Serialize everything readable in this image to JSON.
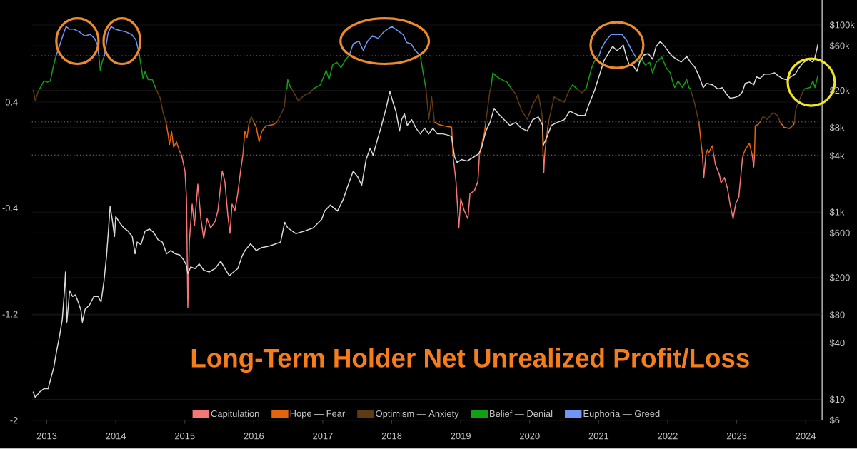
{
  "chart_data": {
    "type": "line",
    "title": "Long-Term Holder Net Unrealized Profit/Loss",
    "xlim": [
      "2012-10-14",
      "2024-03-28"
    ],
    "xticks": [
      "2013",
      "2014",
      "2015",
      "2016",
      "2017",
      "2018",
      "2019",
      "2020",
      "2021",
      "2022",
      "2023",
      "2024"
    ],
    "ylim": [
      -2,
      1.17
    ],
    "yticks": [
      0.4,
      -0.4,
      -1.2,
      -2
    ],
    "y2lim": [
      6,
      185000
    ],
    "y2ticks": [
      {
        "value": 6,
        "label": "$6"
      },
      {
        "value": 10,
        "label": "$10"
      },
      {
        "value": 40,
        "label": "$40"
      },
      {
        "value": 80,
        "label": "$80"
      },
      {
        "value": 200,
        "label": "$200"
      },
      {
        "value": 600,
        "label": "$600"
      },
      {
        "value": 1000,
        "label": "$1k"
      },
      {
        "value": 4000,
        "label": "$4k"
      },
      {
        "value": 8000,
        "label": "$8k"
      },
      {
        "value": 20000,
        "label": "$20k"
      },
      {
        "value": 60000,
        "label": "$60k"
      },
      {
        "value": 100000,
        "label": "$100k"
      }
    ],
    "log": "y2",
    "grid": "y",
    "legend": "bottom",
    "ref_lines": [
      {
        "axis": "y",
        "value": 0.75,
        "color": "#8f8f8f",
        "line_style": "dotted"
      },
      {
        "axis": "y",
        "value": 0.5,
        "color": "#8e8e8e",
        "line_style": "dotted"
      },
      {
        "axis": "y",
        "value": 0.25,
        "color": "#8d8d8d",
        "line_style": "dotted"
      },
      {
        "axis": "y",
        "value": 0,
        "color": "#8c8c8c",
        "line_style": "dotted"
      }
    ],
    "series": [
      {
        "name": "Capitulation",
        "color": "#f77777",
        "x": [
          "2014-12-15",
          "2015-01-02",
          "2015-01-10",
          "2015-01-17",
          "2015-01-25",
          "2015-02-09",
          "2015-02-21",
          "2015-03-11",
          "2015-03-27",
          "2015-04-11",
          "2015-04-29",
          "2015-05-18",
          "2015-06-10",
          "2015-06-25",
          "2015-07-18",
          "2015-08-01",
          "2015-08-17",
          "2015-08-28",
          "2015-09-08",
          "2015-09-23",
          "2015-10-08",
          "2015-10-23",
          "2015-11-04",
          "2015-11-15",
          "2018-11-21",
          "2018-12-07",
          "2018-12-22",
          "2019-01-01",
          "2019-01-20",
          "2019-02-08",
          "2019-02-19",
          "2019-03-14",
          "2019-04-02",
          "2019-04-10",
          "2019-04-21",
          "2020-03-12",
          "2020-03-16",
          "2020-03-20",
          "2020-04-01",
          "2022-07-04",
          "2022-07-11",
          "2022-07-22",
          "2022-08-10",
          "2022-09-02",
          "2022-09-10",
          "2022-10-02",
          "2022-10-10",
          "2022-10-28",
          "2022-11-13",
          "2022-11-28",
          "2022-12-13",
          "2022-12-28",
          "2023-01-12",
          "2023-01-31",
          "2023-02-04",
          "2023-02-15",
          "2023-03-24",
          "2023-04-01",
          "2023-04-05"
        ],
        "values": [
          0,
          -0.12,
          -0.33,
          -1.15,
          -0.65,
          -0.37,
          -0.53,
          -0.22,
          -0.48,
          -0.63,
          -0.48,
          -0.55,
          -0.5,
          -0.42,
          -0.12,
          -0.2,
          -0.46,
          -0.59,
          -0.37,
          -0.42,
          -0.29,
          -0.12,
          0,
          null,
          0,
          -0.2,
          -0.55,
          -0.33,
          -0.42,
          -0.48,
          -0.29,
          -0.27,
          -0.2,
          0,
          null,
          0,
          -0.13,
          0,
          null,
          0,
          -0.17,
          0,
          null,
          0,
          -0.07,
          -0.15,
          -0.21,
          -0.17,
          -0.25,
          -0.38,
          -0.48,
          -0.36,
          -0.32,
          -0.03,
          0,
          null,
          0,
          -0.09,
          0
        ]
      },
      {
        "name": "Hope — Fear",
        "color": "#e3640f",
        "x": [
          "2014-09-23",
          "2014-10-04",
          "2014-10-12",
          "2014-10-23",
          "2014-11-03",
          "2014-11-18",
          "2014-12-04",
          "2014-12-15",
          "2015-01-02",
          "2015-11-04",
          "2015-11-15",
          "2015-11-26",
          "2015-12-08",
          "2015-12-19",
          "2015-12-31",
          "2016-01-14",
          "2016-01-29",
          "2016-02-13",
          "2016-03-06",
          "2016-04-14",
          "2016-05-03",
          "2016-05-22",
          "2018-08-15",
          "2018-09-07",
          "2018-10-07",
          "2018-11-14",
          "2018-11-21",
          "2018-12-07",
          "2019-04-10",
          "2019-04-21",
          "2019-05-06",
          "2019-05-14",
          "2019-06-05",
          "2020-03-09",
          "2020-03-12",
          "2020-03-16",
          "2020-03-20",
          "2020-04-01",
          "2020-04-10",
          "2020-05-10",
          "2022-06-15",
          "2022-06-26",
          "2022-07-04",
          "2022-07-11",
          "2022-07-22",
          "2022-07-30",
          "2022-08-08",
          "2022-08-17",
          "2022-08-25",
          "2022-09-02",
          "2022-09-10",
          "2023-02-04",
          "2023-02-15",
          "2023-03-09",
          "2023-03-24",
          "2023-04-01",
          "2023-04-05",
          "2023-04-09",
          "2023-04-24",
          "2023-05-05",
          "2023-05-20",
          "2023-08-19",
          "2023-09-07",
          "2023-10-07",
          "2023-10-30",
          "2023-11-02"
        ],
        "values": [
          0.25,
          0.16,
          0.08,
          0.18,
          0.06,
          0.1,
          0.03,
          0,
          null,
          0,
          0.18,
          0.13,
          0.25,
          null,
          0.25,
          0.21,
          0.1,
          0.18,
          0.22,
          0.23,
          0.25,
          null,
          0.25,
          0.23,
          0.22,
          0.21,
          0,
          null,
          0,
          0.08,
          0.16,
          0.25,
          null,
          0.25,
          0,
          null,
          0,
          0.15,
          0.25,
          null,
          0.25,
          0.1,
          0,
          null,
          0,
          0.04,
          0.02,
          0.05,
          0.07,
          0,
          null,
          0,
          0.04,
          0.09,
          0,
          null,
          0,
          0.22,
          0.23,
          0.25,
          null,
          0.25,
          0.21,
          0.2,
          0.23,
          0.25
        ]
      },
      {
        "name": "Optimism — Anxiety",
        "color": "#5e3b12",
        "x": [
          "2012-10-21",
          "2012-11-01",
          "2012-11-16",
          "2012-11-24",
          "2012-12-17",
          "2014-08-01",
          "2014-08-24",
          "2014-09-08",
          "2014-09-23",
          "2014-10-04",
          "2015-12-08",
          "2015-12-19",
          "2015-12-31",
          "2016-01-14",
          "2016-05-03",
          "2016-05-22",
          "2016-06-10",
          "2016-06-21",
          "2016-06-25",
          "2016-06-29",
          "2016-07-21",
          "2016-08-24",
          "2016-09-23",
          "2016-10-24",
          "2016-11-11",
          "2016-12-19",
          "2018-07-01",
          "2018-07-16",
          "2018-07-31",
          "2018-08-15",
          "2018-09-07",
          "2019-05-14",
          "2019-06-05",
          "2019-06-09",
          "2019-06-20",
          "2019-09-27",
          "2019-10-19",
          "2019-11-18",
          "2019-12-19",
          "2020-01-17",
          "2020-02-16",
          "2020-03-06",
          "2020-03-09",
          "2020-03-12",
          "2020-04-10",
          "2020-05-10",
          "2020-06-01",
          "2020-07-02",
          "2020-08-01",
          "2020-08-16",
          "2020-09-07",
          "2020-10-04",
          "2020-10-26",
          "2020-11-25",
          "2022-05-01",
          "2022-05-24",
          "2022-06-08",
          "2022-06-15",
          "2022-06-26",
          "2023-05-05",
          "2023-05-20",
          "2023-06-12",
          "2023-07-12",
          "2023-08-04",
          "2023-08-19",
          "2023-09-07",
          "2023-11-02",
          "2023-11-10",
          "2023-12-03",
          "2023-12-18",
          "2023-12-26"
        ],
        "values": [
          0.49,
          0.41,
          0.48,
          0.5,
          null,
          0.5,
          0.43,
          0.32,
          0.25,
          null,
          0.25,
          0.29,
          0.25,
          null,
          0.25,
          0.3,
          0.36,
          0.49,
          0.5,
          null,
          0.5,
          0.41,
          0.45,
          0.47,
          0.5,
          null,
          0.5,
          0.27,
          0.44,
          0.25,
          null,
          0.25,
          0.49,
          0.5,
          null,
          0.5,
          0.46,
          0.34,
          0.27,
          0.38,
          0.46,
          0.31,
          0.25,
          null,
          0.25,
          0.44,
          0.42,
          0.4,
          0.5,
          null,
          0.5,
          0.47,
          0.5,
          null,
          0.5,
          0.39,
          0.29,
          0.25,
          null,
          0.25,
          0.29,
          0.27,
          0.32,
          0.3,
          0.25,
          null,
          0.25,
          0.35,
          0.43,
          0.48,
          0.5
        ]
      },
      {
        "name": "Belief — Denial",
        "color": "#10a010",
        "x": [
          "2012-11-24",
          "2012-12-17",
          "2013-01-04",
          "2013-01-20",
          "2013-02-03",
          "2013-02-19",
          "2013-03-06",
          "2013-10-03",
          "2013-10-11",
          "2013-10-22",
          "2013-11-02",
          "2013-11-21",
          "2014-05-06",
          "2014-05-14",
          "2014-05-25",
          "2014-06-05",
          "2014-06-21",
          "2014-07-13",
          "2014-08-01",
          "2014-08-24",
          "2016-06-25",
          "2016-06-29",
          "2016-07-14",
          "2016-07-21",
          "2016-08-24",
          "2016-11-11",
          "2016-12-19",
          "2017-01-19",
          "2017-02-03",
          "2017-02-22",
          "2017-03-16",
          "2017-04-08",
          "2017-05-01",
          "2017-05-20",
          "2017-06-11",
          "2018-06-01",
          "2018-06-16",
          "2018-07-01",
          "2018-07-16",
          "2019-06-09",
          "2019-06-20",
          "2019-07-13",
          "2019-08-05",
          "2019-09-04",
          "2019-09-27",
          "2019-10-19",
          "2020-08-01",
          "2020-08-16",
          "2020-09-07",
          "2020-10-04",
          "2020-10-26",
          "2020-11-25",
          "2020-12-10",
          "2021-01-03",
          "2021-01-14",
          "2021-07-11",
          "2021-07-29",
          "2021-08-13",
          "2021-09-05",
          "2021-09-28",
          "2021-10-13",
          "2021-11-01",
          "2021-12-01",
          "2021-12-24",
          "2022-01-15",
          "2022-01-26",
          "2022-02-07",
          "2022-02-25",
          "2022-03-20",
          "2022-04-12",
          "2022-04-23",
          "2022-05-01",
          "2022-05-24",
          "2023-12-26",
          "2024-01-24",
          "2024-02-08",
          "2024-02-19",
          "2024-03-06"
        ],
        "values": [
          0.5,
          0.56,
          0.55,
          0.56,
          0.66,
          0.75,
          null,
          0.75,
          0.64,
          0.71,
          0.75,
          null,
          0.75,
          0.68,
          0.58,
          0.63,
          0.57,
          0.57,
          0.5,
          null,
          0.5,
          0.57,
          0.51,
          0.5,
          null,
          0.5,
          0.53,
          0.64,
          0.57,
          0.68,
          0.7,
          0.66,
          0.72,
          0.75,
          null,
          0.75,
          0.62,
          0.5,
          null,
          0.5,
          0.62,
          0.59,
          0.57,
          0.55,
          0.5,
          null,
          0.5,
          0.53,
          0.5,
          null,
          0.5,
          0.66,
          0.71,
          0.75,
          null,
          0.75,
          0.7,
          0.73,
          0.68,
          0.7,
          0.62,
          0.7,
          0.74,
          0.66,
          0.62,
          0.56,
          0.51,
          0.56,
          0.51,
          0.57,
          0.51,
          0.5,
          null,
          0.5,
          0.51,
          0.56,
          0.51,
          0.6
        ]
      },
      {
        "name": "Euphoria — Greed",
        "color": "#6f96f4",
        "x": [
          "2013-02-19",
          "2013-03-06",
          "2013-03-29",
          "2013-04-13",
          "2013-05-02",
          "2013-05-24",
          "2013-06-23",
          "2013-07-20",
          "2013-08-19",
          "2013-09-11",
          "2013-09-26",
          "2013-10-03",
          "2013-10-11",
          "2013-11-02",
          "2013-11-21",
          "2013-12-07",
          "2013-12-29",
          "2014-01-24",
          "2014-02-23",
          "2014-03-26",
          "2014-04-17",
          "2014-04-29",
          "2014-05-06",
          "2014-05-14",
          "2017-05-20",
          "2017-06-11",
          "2017-07-11",
          "2017-08-03",
          "2017-08-26",
          "2017-09-21",
          "2017-10-21",
          "2017-11-20",
          "2017-12-09",
          "2018-01-01",
          "2018-01-31",
          "2018-03-02",
          "2018-03-21",
          "2018-04-13",
          "2018-05-05",
          "2018-06-01",
          "2018-06-16",
          "2021-01-03",
          "2021-01-14",
          "2021-02-06",
          "2021-03-08",
          "2021-04-07",
          "2021-05-04",
          "2021-05-27",
          "2021-06-18",
          "2021-07-11"
        ],
        "values": [
          0.75,
          0.81,
          0.91,
          0.97,
          0.95,
          0.95,
          0.93,
          0.9,
          0.91,
          0.88,
          0.83,
          0.75,
          null,
          0.75,
          0.92,
          0.97,
          0.95,
          0.94,
          0.93,
          0.91,
          0.87,
          0.8,
          0.75,
          null,
          0.75,
          0.84,
          0.86,
          0.79,
          0.86,
          0.9,
          0.88,
          0.93,
          0.95,
          0.97,
          0.94,
          0.91,
          0.85,
          0.84,
          0.79,
          0.75,
          null,
          0.75,
          0.8,
          0.86,
          0.91,
          0.91,
          0.91,
          0.87,
          0.81,
          0.75
        ]
      },
      {
        "color": "#d9d9d9",
        "axis": "y2",
        "x": [
          "2012-10-21",
          "2012-11-01",
          "2012-11-24",
          "2012-12-17",
          "2013-01-08",
          "2013-01-23",
          "2013-02-07",
          "2013-02-22",
          "2013-03-09",
          "2013-03-24",
          "2013-04-04",
          "2013-04-10",
          "2013-04-17",
          "2013-05-02",
          "2013-05-17",
          "2013-06-01",
          "2013-06-16",
          "2013-07-01",
          "2013-07-08",
          "2013-07-23",
          "2013-08-15",
          "2013-09-07",
          "2013-09-30",
          "2013-10-15",
          "2013-10-30",
          "2013-11-13",
          "2013-11-24",
          "2013-12-02",
          "2013-12-13",
          "2013-12-25",
          "2014-01-01",
          "2014-01-20",
          "2014-02-12",
          "2014-03-06",
          "2014-03-29",
          "2014-04-13",
          "2014-04-24",
          "2014-05-14",
          "2014-06-05",
          "2014-06-28",
          "2014-07-20",
          "2014-08-12",
          "2014-09-04",
          "2014-09-27",
          "2014-10-19",
          "2014-11-11",
          "2014-12-04",
          "2014-12-26",
          "2015-01-10",
          "2015-01-17",
          "2015-02-01",
          "2015-02-24",
          "2015-03-18",
          "2015-04-11",
          "2015-05-11",
          "2015-06-10",
          "2015-07-10",
          "2015-08-01",
          "2015-08-24",
          "2015-09-16",
          "2015-10-08",
          "2015-10-31",
          "2015-11-15",
          "2015-12-15",
          "2016-01-14",
          "2016-02-13",
          "2016-03-14",
          "2016-04-14",
          "2016-05-22",
          "2016-06-13",
          "2016-06-29",
          "2016-08-12",
          "2016-09-27",
          "2016-11-11",
          "2016-12-26",
          "2017-01-11",
          "2017-02-10",
          "2017-03-20",
          "2017-04-19",
          "2017-05-20",
          "2017-06-11",
          "2017-07-04",
          "2017-07-26",
          "2017-08-18",
          "2017-09-09",
          "2017-09-24",
          "2017-10-17",
          "2017-11-08",
          "2017-12-02",
          "2017-12-22",
          "2018-01-08",
          "2018-01-23",
          "2018-02-11",
          "2018-02-22",
          "2018-03-09",
          "2018-03-24",
          "2018-04-16",
          "2018-05-09",
          "2018-06-01",
          "2018-06-23",
          "2018-07-16",
          "2018-08-07",
          "2018-08-30",
          "2018-09-29",
          "2018-10-30",
          "2018-11-14",
          "2018-11-29",
          "2018-12-13",
          "2019-01-05",
          "2019-02-04",
          "2019-03-14",
          "2019-04-06",
          "2019-04-21",
          "2019-05-14",
          "2019-06-05",
          "2019-06-27",
          "2019-07-20",
          "2019-08-19",
          "2019-09-18",
          "2019-10-19",
          "2019-11-18",
          "2019-12-19",
          "2020-01-17",
          "2020-02-16",
          "2020-03-10",
          "2020-03-13",
          "2020-04-02",
          "2020-04-25",
          "2020-05-25",
          "2020-07-02",
          "2020-08-01",
          "2020-08-16",
          "2020-09-16",
          "2020-10-20",
          "2020-11-11",
          "2020-12-10",
          "2021-01-07",
          "2021-01-29",
          "2021-02-21",
          "2021-03-16",
          "2021-04-07",
          "2021-04-26",
          "2021-05-11",
          "2021-05-27",
          "2021-06-10",
          "2021-07-03",
          "2021-07-22",
          "2021-08-06",
          "2021-08-29",
          "2021-09-20",
          "2021-10-13",
          "2021-11-01",
          "2021-11-23",
          "2021-12-16",
          "2022-01-07",
          "2022-01-26",
          "2022-02-18",
          "2022-03-13",
          "2022-04-12",
          "2022-05-01",
          "2022-05-24",
          "2022-06-15",
          "2022-07-08",
          "2022-07-26",
          "2022-08-25",
          "2022-09-24",
          "2022-10-17",
          "2022-11-05",
          "2022-11-28",
          "2022-12-20",
          "2023-01-12",
          "2023-01-31",
          "2023-02-15",
          "2023-03-09",
          "2023-04-01",
          "2023-04-16",
          "2023-05-05",
          "2023-05-28",
          "2023-06-27",
          "2023-07-20",
          "2023-08-07",
          "2023-08-30",
          "2023-09-22",
          "2023-10-15",
          "2023-11-06",
          "2023-11-25",
          "2023-12-18",
          "2024-01-16",
          "2024-02-08",
          "2024-02-19",
          "2024-03-06"
        ],
        "values": [
          12,
          10.5,
          12,
          13,
          13,
          17,
          22,
          33,
          47,
          72,
          140,
          230,
          67,
          145,
          126,
          131,
          110,
          89,
          67,
          92,
          102,
          126,
          126,
          110,
          180,
          340,
          680,
          1150,
          840,
          550,
          900,
          780,
          680,
          630,
          550,
          360,
          480,
          450,
          630,
          660,
          610,
          510,
          480,
          360,
          390,
          360,
          350,
          310,
          270,
          220,
          260,
          250,
          280,
          240,
          230,
          250,
          300,
          250,
          210,
          230,
          250,
          340,
          390,
          460,
          390,
          420,
          430,
          450,
          480,
          780,
          680,
          590,
          630,
          680,
          840,
          1030,
          1190,
          1030,
          1370,
          2080,
          2750,
          2400,
          1940,
          3650,
          4830,
          4060,
          5960,
          8450,
          12900,
          19600,
          14800,
          12000,
          7360,
          9730,
          11200,
          8450,
          9730,
          7890,
          6860,
          7890,
          6860,
          7890,
          6860,
          6860,
          6620,
          6390,
          3920,
          3400,
          3650,
          3520,
          3920,
          4200,
          4830,
          7360,
          9080,
          12900,
          11200,
          9730,
          8450,
          9080,
          7890,
          7360,
          9730,
          10400,
          8450,
          5180,
          6390,
          8450,
          9080,
          9730,
          12000,
          11600,
          10800,
          10800,
          14300,
          20000,
          30000,
          41700,
          49600,
          59200,
          53200,
          57100,
          61200,
          46200,
          38200,
          36800,
          32000,
          40200,
          47900,
          49600,
          43200,
          59200,
          66800,
          59200,
          51400,
          46200,
          43200,
          40200,
          46200,
          40200,
          35600,
          28800,
          21400,
          23800,
          23000,
          20700,
          21400,
          18600,
          16500,
          16800,
          17400,
          19300,
          23800,
          24600,
          23000,
          27900,
          26900,
          29900,
          29900,
          30900,
          28800,
          26900,
          26000,
          27900,
          29900,
          34400,
          39500,
          43200,
          40200,
          44700,
          62300
        ]
      }
    ]
  }
}
